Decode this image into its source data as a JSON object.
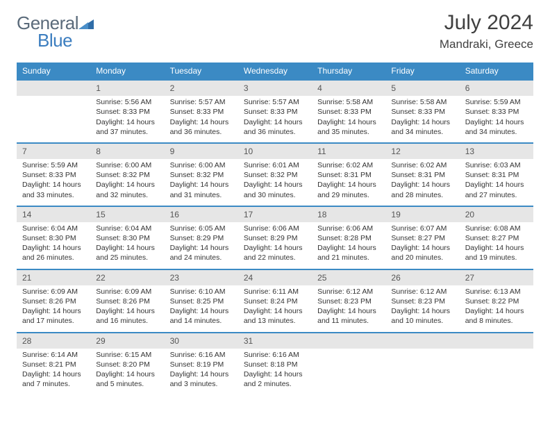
{
  "brand": {
    "part1": "General",
    "part2": "Blue"
  },
  "title": "July 2024",
  "location": "Mandraki, Greece",
  "colors": {
    "header_bg": "#3b8ac4",
    "header_text": "#ffffff",
    "daynum_bg": "#e6e6e6",
    "row_border": "#3b8ac4",
    "body_text": "#333333",
    "logo_gray": "#5a6a7a",
    "logo_blue": "#3b7dbf"
  },
  "weekdays": [
    "Sunday",
    "Monday",
    "Tuesday",
    "Wednesday",
    "Thursday",
    "Friday",
    "Saturday"
  ],
  "start_offset": 1,
  "days": [
    {
      "n": 1,
      "sunrise": "5:56 AM",
      "sunset": "8:33 PM",
      "daylight": "14 hours and 37 minutes."
    },
    {
      "n": 2,
      "sunrise": "5:57 AM",
      "sunset": "8:33 PM",
      "daylight": "14 hours and 36 minutes."
    },
    {
      "n": 3,
      "sunrise": "5:57 AM",
      "sunset": "8:33 PM",
      "daylight": "14 hours and 36 minutes."
    },
    {
      "n": 4,
      "sunrise": "5:58 AM",
      "sunset": "8:33 PM",
      "daylight": "14 hours and 35 minutes."
    },
    {
      "n": 5,
      "sunrise": "5:58 AM",
      "sunset": "8:33 PM",
      "daylight": "14 hours and 34 minutes."
    },
    {
      "n": 6,
      "sunrise": "5:59 AM",
      "sunset": "8:33 PM",
      "daylight": "14 hours and 34 minutes."
    },
    {
      "n": 7,
      "sunrise": "5:59 AM",
      "sunset": "8:33 PM",
      "daylight": "14 hours and 33 minutes."
    },
    {
      "n": 8,
      "sunrise": "6:00 AM",
      "sunset": "8:32 PM",
      "daylight": "14 hours and 32 minutes."
    },
    {
      "n": 9,
      "sunrise": "6:00 AM",
      "sunset": "8:32 PM",
      "daylight": "14 hours and 31 minutes."
    },
    {
      "n": 10,
      "sunrise": "6:01 AM",
      "sunset": "8:32 PM",
      "daylight": "14 hours and 30 minutes."
    },
    {
      "n": 11,
      "sunrise": "6:02 AM",
      "sunset": "8:31 PM",
      "daylight": "14 hours and 29 minutes."
    },
    {
      "n": 12,
      "sunrise": "6:02 AM",
      "sunset": "8:31 PM",
      "daylight": "14 hours and 28 minutes."
    },
    {
      "n": 13,
      "sunrise": "6:03 AM",
      "sunset": "8:31 PM",
      "daylight": "14 hours and 27 minutes."
    },
    {
      "n": 14,
      "sunrise": "6:04 AM",
      "sunset": "8:30 PM",
      "daylight": "14 hours and 26 minutes."
    },
    {
      "n": 15,
      "sunrise": "6:04 AM",
      "sunset": "8:30 PM",
      "daylight": "14 hours and 25 minutes."
    },
    {
      "n": 16,
      "sunrise": "6:05 AM",
      "sunset": "8:29 PM",
      "daylight": "14 hours and 24 minutes."
    },
    {
      "n": 17,
      "sunrise": "6:06 AM",
      "sunset": "8:29 PM",
      "daylight": "14 hours and 22 minutes."
    },
    {
      "n": 18,
      "sunrise": "6:06 AM",
      "sunset": "8:28 PM",
      "daylight": "14 hours and 21 minutes."
    },
    {
      "n": 19,
      "sunrise": "6:07 AM",
      "sunset": "8:27 PM",
      "daylight": "14 hours and 20 minutes."
    },
    {
      "n": 20,
      "sunrise": "6:08 AM",
      "sunset": "8:27 PM",
      "daylight": "14 hours and 19 minutes."
    },
    {
      "n": 21,
      "sunrise": "6:09 AM",
      "sunset": "8:26 PM",
      "daylight": "14 hours and 17 minutes."
    },
    {
      "n": 22,
      "sunrise": "6:09 AM",
      "sunset": "8:26 PM",
      "daylight": "14 hours and 16 minutes."
    },
    {
      "n": 23,
      "sunrise": "6:10 AM",
      "sunset": "8:25 PM",
      "daylight": "14 hours and 14 minutes."
    },
    {
      "n": 24,
      "sunrise": "6:11 AM",
      "sunset": "8:24 PM",
      "daylight": "14 hours and 13 minutes."
    },
    {
      "n": 25,
      "sunrise": "6:12 AM",
      "sunset": "8:23 PM",
      "daylight": "14 hours and 11 minutes."
    },
    {
      "n": 26,
      "sunrise": "6:12 AM",
      "sunset": "8:23 PM",
      "daylight": "14 hours and 10 minutes."
    },
    {
      "n": 27,
      "sunrise": "6:13 AM",
      "sunset": "8:22 PM",
      "daylight": "14 hours and 8 minutes."
    },
    {
      "n": 28,
      "sunrise": "6:14 AM",
      "sunset": "8:21 PM",
      "daylight": "14 hours and 7 minutes."
    },
    {
      "n": 29,
      "sunrise": "6:15 AM",
      "sunset": "8:20 PM",
      "daylight": "14 hours and 5 minutes."
    },
    {
      "n": 30,
      "sunrise": "6:16 AM",
      "sunset": "8:19 PM",
      "daylight": "14 hours and 3 minutes."
    },
    {
      "n": 31,
      "sunrise": "6:16 AM",
      "sunset": "8:18 PM",
      "daylight": "14 hours and 2 minutes."
    }
  ],
  "labels": {
    "sunrise": "Sunrise:",
    "sunset": "Sunset:",
    "daylight": "Daylight:"
  }
}
